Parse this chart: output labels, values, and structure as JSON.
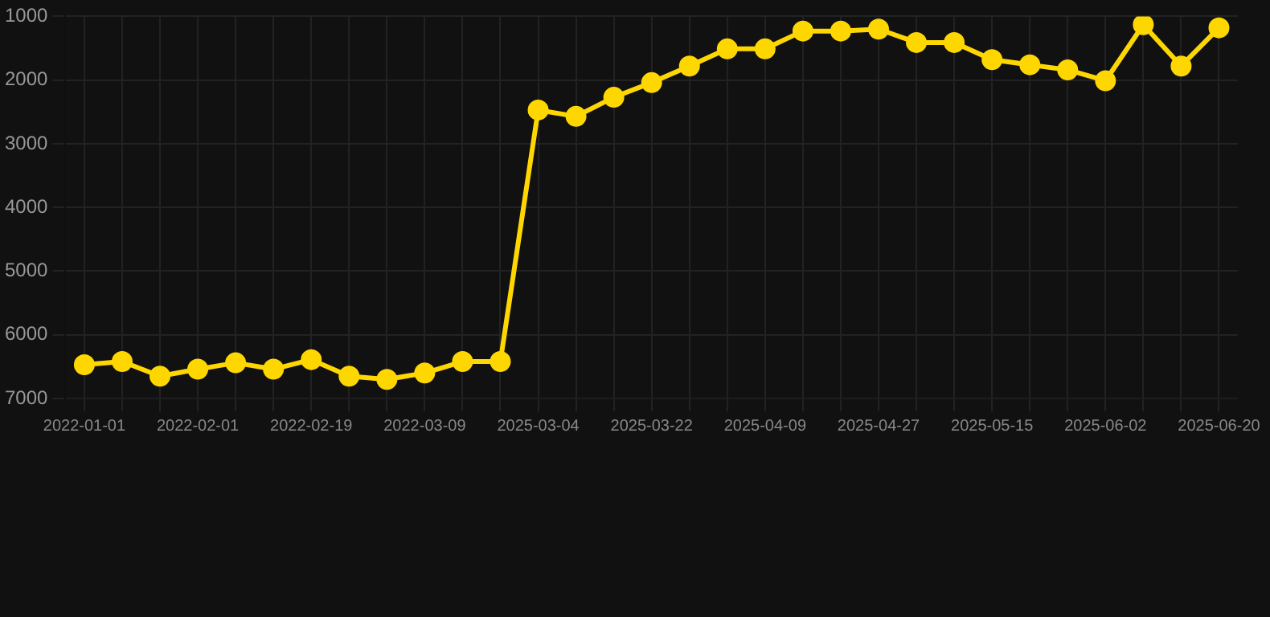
{
  "chart_data": {
    "type": "line",
    "categories": [
      "2022-01-01",
      null,
      null,
      "2022-02-01",
      null,
      null,
      "2022-02-19",
      null,
      null,
      "2022-03-09",
      null,
      null,
      "2025-03-04",
      null,
      null,
      "2025-03-22",
      null,
      null,
      "2025-04-09",
      null,
      null,
      "2025-04-27",
      null,
      null,
      "2025-05-15",
      null,
      null,
      "2025-06-02",
      null,
      null,
      "2025-06-20"
    ],
    "series": [
      {
        "color": "#ffd700",
        "values": [
          6470,
          6420,
          6650,
          6540,
          6440,
          6540,
          6390,
          6650,
          6700,
          6600,
          6420,
          6420,
          2470,
          2570,
          2270,
          2040,
          1780,
          1510,
          1510,
          1230,
          1230,
          1200,
          1410,
          1410,
          1680,
          1760,
          1840,
          2010,
          1130,
          1780,
          1180
        ]
      }
    ],
    "ylim": [
      7000,
      1000
    ],
    "yticks": [
      1000,
      2000,
      3000,
      4000,
      5000,
      6000,
      7000
    ],
    "grid": true,
    "marker": "circle",
    "line_style": "solid"
  }
}
